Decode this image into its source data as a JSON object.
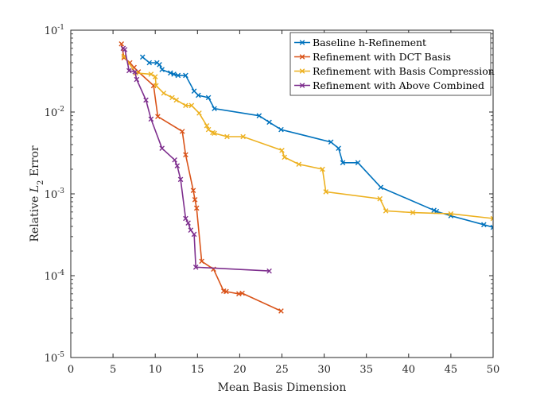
{
  "chart_data": {
    "type": "line",
    "yscale": "log",
    "xlabel": "Mean Basis Dimension",
    "ylabel": {
      "prefix": "Relative ",
      "main": "L",
      "sub": "2",
      "suffix": " Error"
    },
    "xlim": [
      0,
      50
    ],
    "ylim": [
      1e-05,
      0.1
    ],
    "xticks": [
      0,
      5,
      10,
      15,
      20,
      25,
      30,
      35,
      40,
      45,
      50
    ],
    "xtick_labels": [
      "0",
      "5",
      "10",
      "15",
      "20",
      "25",
      "30",
      "35",
      "40",
      "45",
      "50"
    ],
    "yticks": [
      1e-05,
      0.0001,
      0.001,
      0.01,
      0.1
    ],
    "ytick_labels": [
      {
        "base": "10",
        "exp": "-5"
      },
      {
        "base": "10",
        "exp": "-4"
      },
      {
        "base": "10",
        "exp": "-3"
      },
      {
        "base": "10",
        "exp": "-2"
      },
      {
        "base": "10",
        "exp": "-1"
      }
    ],
    "legend_position": "top-right",
    "marker": "x",
    "series": [
      {
        "name": "Baseline h-Refinement",
        "color": "#0072BD",
        "x": [
          8.5,
          9.3,
          10.2,
          10.5,
          10.8,
          11.8,
          12.2,
          12.7,
          13.6,
          14.6,
          15.1,
          16.3,
          17.0,
          22.3,
          23.5,
          24.9,
          30.8,
          31.7,
          32.2,
          34.0,
          36.7,
          43.0,
          43.3,
          45.0,
          48.9,
          50.0
        ],
        "y": [
          0.047,
          0.04,
          0.04,
          0.038,
          0.033,
          0.03,
          0.029,
          0.028,
          0.028,
          0.018,
          0.016,
          0.015,
          0.011,
          0.009,
          0.0075,
          0.0061,
          0.0043,
          0.0036,
          0.0024,
          0.0024,
          0.0012,
          0.00063,
          0.00061,
          0.00054,
          0.00042,
          0.00039
        ]
      },
      {
        "name": "Refinement with DCT Basis",
        "color": "#D95319",
        "x": [
          6.0,
          6.3,
          7.0,
          7.5,
          8.0,
          9.8,
          10.3,
          13.2,
          13.6,
          14.5,
          14.7,
          14.9,
          15.5,
          16.9,
          18.1,
          18.4,
          19.9,
          20.3,
          24.9
        ],
        "y": [
          0.068,
          0.046,
          0.04,
          0.035,
          0.031,
          0.021,
          0.0088,
          0.0058,
          0.003,
          0.0011,
          0.00085,
          0.00067,
          0.00015,
          0.00012,
          6.5e-05,
          6.4e-05,
          6e-05,
          6.1e-05,
          3.7e-05
        ]
      },
      {
        "name": "Refinement with Basis Compression",
        "color": "#EDB120",
        "x": [
          6.3,
          7.7,
          9.5,
          10.0,
          10.1,
          11.0,
          12.0,
          12.5,
          13.6,
          14.3,
          15.2,
          16.1,
          16.3,
          16.8,
          17.0,
          18.5,
          20.4,
          25.0,
          25.3,
          27.0,
          29.8,
          30.2,
          36.6,
          37.3,
          40.5,
          45.0,
          50.0
        ],
        "y": [
          0.048,
          0.03,
          0.029,
          0.027,
          0.021,
          0.017,
          0.015,
          0.014,
          0.012,
          0.012,
          0.0097,
          0.0068,
          0.0061,
          0.0056,
          0.0055,
          0.005,
          0.005,
          0.0034,
          0.0028,
          0.0023,
          0.002,
          0.00106,
          0.00087,
          0.00062,
          0.00059,
          0.00057,
          0.0005
        ]
      },
      {
        "name": "Refinement with Above Combined",
        "color": "#7E2F8E",
        "x": [
          6.2,
          6.4,
          6.9,
          7.6,
          7.8,
          8.9,
          9.5,
          10.8,
          12.3,
          12.6,
          13.0,
          13.6,
          13.9,
          14.2,
          14.6,
          14.8,
          23.5
        ],
        "y": [
          0.06,
          0.058,
          0.032,
          0.031,
          0.025,
          0.014,
          0.0082,
          0.0036,
          0.0026,
          0.0022,
          0.0015,
          0.0005,
          0.00044,
          0.00036,
          0.00032,
          0.000127,
          0.000114
        ]
      }
    ]
  }
}
